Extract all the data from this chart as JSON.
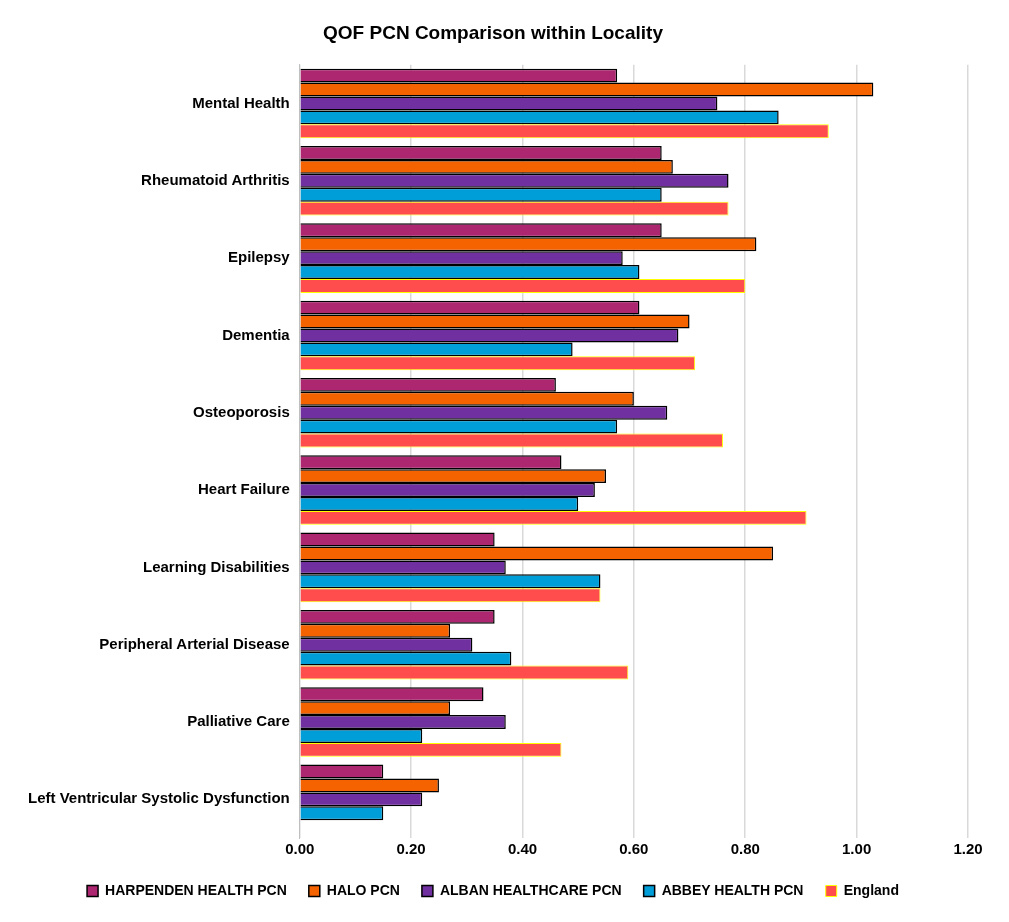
{
  "chart_data": {
    "type": "bar",
    "orientation": "horizontal",
    "title": "QOF PCN Comparison within Locality",
    "categories": [
      "Mental Health",
      "Rheumatoid Arthritis",
      "Epilepsy",
      "Dementia",
      "Osteoporosis",
      "Heart Failure",
      "Learning Disabilities",
      "Peripheral Arterial Disease",
      "Palliative Care",
      "Left Ventricular Systolic Dysfunction"
    ],
    "series": [
      {
        "name": "HARPENDEN HEALTH PCN",
        "color": "#ad2670",
        "values": [
          0.57,
          0.65,
          0.65,
          0.61,
          0.46,
          0.47,
          0.35,
          0.35,
          0.33,
          0.15
        ]
      },
      {
        "name": "HALO PCN",
        "color": "#f46300",
        "values": [
          1.03,
          0.67,
          0.82,
          0.7,
          0.6,
          0.55,
          0.85,
          0.27,
          0.27,
          0.25
        ]
      },
      {
        "name": "ALBAN HEALTHCARE PCN",
        "color": "#7030a0",
        "values": [
          0.75,
          0.77,
          0.58,
          0.68,
          0.66,
          0.53,
          0.37,
          0.31,
          0.37,
          0.22
        ]
      },
      {
        "name": "ABBEY HEALTH PCN",
        "color": "#009ed8",
        "values": [
          0.86,
          0.65,
          0.61,
          0.49,
          0.57,
          0.5,
          0.54,
          0.38,
          0.22,
          0.15
        ]
      },
      {
        "name": "England",
        "color": "#ff4d4d",
        "values": [
          0.95,
          0.77,
          0.8,
          0.71,
          0.76,
          0.91,
          0.54,
          0.59,
          0.47,
          null
        ]
      }
    ],
    "xlim": [
      0,
      1.2
    ],
    "xticks": [
      {
        "value": 0,
        "label": "0.00"
      },
      {
        "value": 0.2,
        "label": "0.20"
      },
      {
        "value": 0.4,
        "label": "0.40"
      },
      {
        "value": 0.6,
        "label": "0.60"
      },
      {
        "value": 0.8,
        "label": "0.80"
      },
      {
        "value": 1.0,
        "label": "1.00"
      },
      {
        "value": 1.2,
        "label": "1.20"
      }
    ],
    "grid": "x",
    "legend": "bottom"
  }
}
